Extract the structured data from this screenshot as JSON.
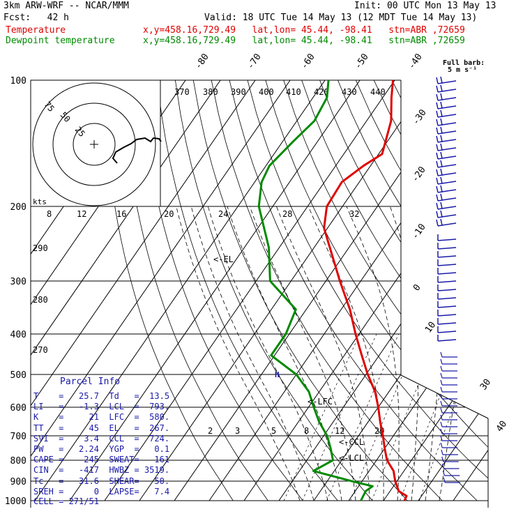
{
  "header": {
    "model": "3km ARW-WRF -- NCAR/MMM",
    "init": "Init: 00 UTC Mon 13 May 13",
    "fcst": "Fcst:   42 h",
    "valid": "Valid: 18 UTC Tue 14 May 13 (12 MDT Tue 14 May 13)",
    "temp_label": "Temperature",
    "temp_info": "x,y=458.16,729.49   lat,lon= 45.44, -98.41   stn=ABR ,72659",
    "dew_label": "Dewpoint temperature",
    "dew_info": "x,y=458.16,729.49   lat,lon= 45.44, -98.41   stn=ABR ,72659",
    "barb_legend_line1": "Full barb:",
    "barb_legend_line2": "5 m s⁻¹"
  },
  "colors": {
    "temperature": "#e00000",
    "dewpoint": "#008a00",
    "parcel_info": "#1a1aa8",
    "wind_barbs": "#1a1aa8",
    "grid": "#000000"
  },
  "parcel_info": {
    "title": "Parcel Info",
    "rows": [
      {
        "k1": "T",
        "v1": "25.7",
        "k2": "Td",
        "v2": "13.5"
      },
      {
        "k1": "LI",
        "v1": "-1.3",
        "k2": "LCL",
        "v2": "793."
      },
      {
        "k1": "K",
        "v1": "21",
        "k2": "LFC",
        "v2": "580."
      },
      {
        "k1": "TT",
        "v1": "45",
        "k2": "EL",
        "v2": "267."
      },
      {
        "k1": "SVI",
        "v1": "3.4",
        "k2": "CCL",
        "v2": "724."
      },
      {
        "k1": "PW",
        "v1": "2.24",
        "k2": "YGP",
        "v2": "0.1"
      },
      {
        "k1": "CAPE",
        "v1": "245",
        "k2": "SWEAT",
        "v2": "161"
      },
      {
        "k1": "CIN",
        "v1": "-417",
        "k2": "HWBZ",
        "v2": "3519."
      },
      {
        "k1": "Tc",
        "v1": "31.6",
        "k2": "SHEAR",
        "v2": "50."
      },
      {
        "k1": "SREH",
        "v1": "0",
        "k2": "LAPSE",
        "v2": "7.4"
      }
    ],
    "cell": "CELL = 271/51"
  },
  "hodograph": {
    "kts_label": "kts",
    "ring_labels": [
      "75",
      "50",
      "25"
    ]
  },
  "chart_data": {
    "type": "line",
    "title": "",
    "xlabel": "",
    "ylabel": "",
    "pressure_levels": [
      "100",
      "200",
      "300",
      "400",
      "500",
      "600",
      "700",
      "800",
      "900",
      "1000"
    ],
    "isotherm_labels": [
      "-80",
      "-70",
      "-60",
      "-50",
      "-40",
      "-30",
      "-20",
      "-10",
      "0",
      "10",
      "30",
      "40"
    ],
    "theta_labels": [
      "370",
      "380",
      "390",
      "400",
      "410",
      "420",
      "430",
      "440",
      "290",
      "280",
      "270"
    ],
    "mixing_ratio_labels": [
      "8",
      "12",
      "16",
      "20",
      "24",
      "28",
      "32",
      "2",
      "3",
      "5",
      "8",
      "12",
      "20"
    ],
    "annotations": [
      "<-EL",
      "<-LFC",
      "<-CCL",
      "<-LCL",
      "H"
    ],
    "series": [
      {
        "name": "Temperature",
        "values": [
          {
            "p": 1000,
            "t": 26.0
          },
          {
            "p": 975,
            "t": 25.7
          },
          {
            "p": 950,
            "t": 22.5
          },
          {
            "p": 925,
            "t": 21.0
          },
          {
            "p": 900,
            "t": 19.5
          },
          {
            "p": 850,
            "t": 17.0
          },
          {
            "p": 800,
            "t": 13.0
          },
          {
            "p": 750,
            "t": 10.0
          },
          {
            "p": 700,
            "t": 7.0
          },
          {
            "p": 650,
            "t": 3.5
          },
          {
            "p": 600,
            "t": 0.0
          },
          {
            "p": 550,
            "t": -4.0
          },
          {
            "p": 500,
            "t": -9.5
          },
          {
            "p": 450,
            "t": -15.0
          },
          {
            "p": 400,
            "t": -21.0
          },
          {
            "p": 350,
            "t": -27.5
          },
          {
            "p": 300,
            "t": -36.0
          },
          {
            "p": 250,
            "t": -45.5
          },
          {
            "p": 225,
            "t": -51.0
          },
          {
            "p": 200,
            "t": -54.5
          },
          {
            "p": 175,
            "t": -55.0
          },
          {
            "p": 160,
            "t": -52.0
          },
          {
            "p": 150,
            "t": -49.0
          },
          {
            "p": 125,
            "t": -53.0
          },
          {
            "p": 110,
            "t": -57.5
          },
          {
            "p": 100,
            "t": -60.5
          }
        ]
      },
      {
        "name": "Dewpoint temperature",
        "values": [
          {
            "p": 1000,
            "t": 13.5
          },
          {
            "p": 950,
            "t": 13.0
          },
          {
            "p": 925,
            "t": 14.0
          },
          {
            "p": 900,
            "t": 7.0
          },
          {
            "p": 850,
            "t": -6.0
          },
          {
            "p": 800,
            "t": -2.5
          },
          {
            "p": 750,
            "t": -5.5
          },
          {
            "p": 700,
            "t": -9.0
          },
          {
            "p": 650,
            "t": -14.0
          },
          {
            "p": 600,
            "t": -18.5
          },
          {
            "p": 550,
            "t": -23.0
          },
          {
            "p": 500,
            "t": -30.0
          },
          {
            "p": 450,
            "t": -41.0
          },
          {
            "p": 400,
            "t": -41.0
          },
          {
            "p": 350,
            "t": -43.0
          },
          {
            "p": 300,
            "t": -56.0
          },
          {
            "p": 250,
            "t": -63.0
          },
          {
            "p": 200,
            "t": -74.0
          },
          {
            "p": 175,
            "t": -78.0
          },
          {
            "p": 160,
            "t": -79.0
          },
          {
            "p": 140,
            "t": -77.0
          },
          {
            "p": 125,
            "t": -75.0
          },
          {
            "p": 110,
            "t": -76.0
          },
          {
            "p": 100,
            "t": -79.0
          }
        ]
      }
    ]
  }
}
